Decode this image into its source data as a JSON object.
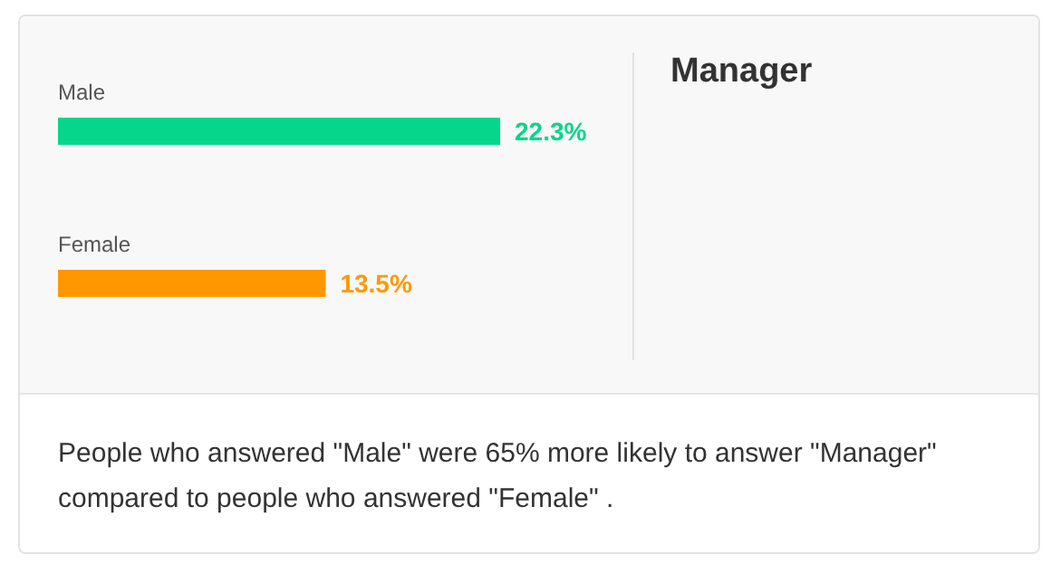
{
  "chart_data": {
    "type": "bar",
    "orientation": "horizontal",
    "title": "Manager",
    "categories": [
      "Male",
      "Female"
    ],
    "values": [
      22.3,
      13.5
    ],
    "colors": [
      "#06d68c",
      "#ff9800"
    ],
    "value_labels": [
      "22.3%",
      "13.5%"
    ],
    "legend": false,
    "grid": false,
    "tick_labels": false,
    "annotations": [
      "People who answered \"Male\" were 65% more likely to answer \"Manager\" compared to people who answered \"Female\" ."
    ]
  }
}
